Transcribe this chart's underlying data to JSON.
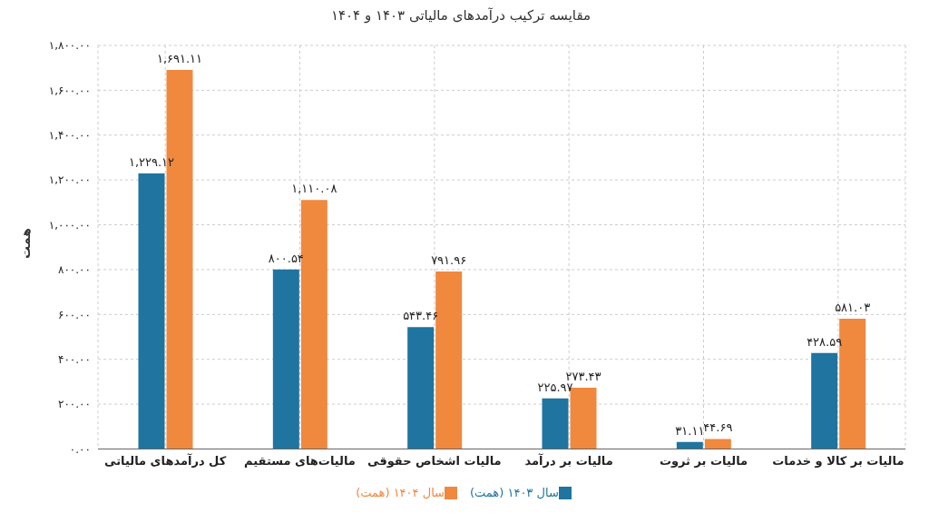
{
  "chart_data": {
    "type": "bar",
    "title": "مقایسه ترکیب درآمدهای مالیاتی ۱۴۰۳ و ۱۴۰۴",
    "ylabel": "همت",
    "categories": [
      "کل درآمدهای مالیاتی",
      "مالیات‌های مستقیم",
      "مالیات اشخاص حقوقی",
      "مالیات بر درآمد",
      "مالیات بر ثروت",
      "مالیات بر کالا و خدمات"
    ],
    "series": [
      {
        "name": "سال ۱۴۰۳ (همت)",
        "color": "#1f74a0",
        "values": [
          1229.12,
          800.54,
          543.46,
          225.97,
          31.11,
          428.59
        ],
        "value_labels": [
          "۱,۲۲۹.۱۲",
          "۸۰۰.۵۴",
          "۵۴۳.۴۶",
          "۲۲۵.۹۷",
          "۳۱.۱۱",
          "۴۲۸.۵۹"
        ]
      },
      {
        "name": "سال ۱۴۰۴ (همت)",
        "color": "#f0883e",
        "values": [
          1691.11,
          1110.08,
          791.96,
          273.43,
          44.69,
          581.03
        ],
        "value_labels": [
          "۱,۶۹۱.۱۱",
          "۱,۱۱۰.۰۸",
          "۷۹۱.۹۶",
          "۲۷۳.۴۳",
          "۴۴.۶۹",
          "۵۸۱.۰۳"
        ]
      }
    ],
    "ylim": [
      0,
      1800
    ],
    "yticks": [
      {
        "value": 0,
        "label": "۰.۰۰"
      },
      {
        "value": 200,
        "label": "۲۰۰.۰۰"
      },
      {
        "value": 400,
        "label": "۴۰۰.۰۰"
      },
      {
        "value": 600,
        "label": "۶۰۰.۰۰"
      },
      {
        "value": 800,
        "label": "۸۰۰.۰۰"
      },
      {
        "value": 1000,
        "label": "۱,۰۰۰.۰۰"
      },
      {
        "value": 1200,
        "label": "۱,۲۰۰.۰۰"
      },
      {
        "value": 1400,
        "label": "۱,۴۰۰.۰۰"
      },
      {
        "value": 1600,
        "label": "۱,۶۰۰.۰۰"
      },
      {
        "value": 1800,
        "label": "۱,۸۰۰.۰۰"
      }
    ],
    "grid": true,
    "legend": "bottom"
  }
}
